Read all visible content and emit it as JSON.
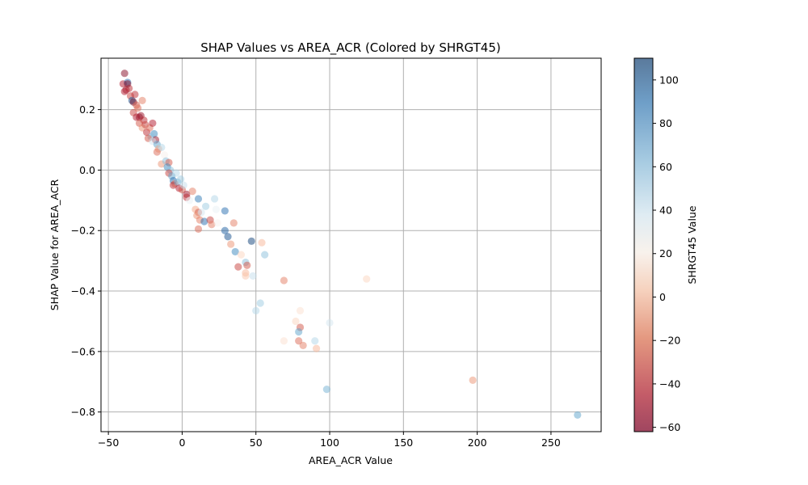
{
  "chart_data": {
    "type": "scatter",
    "title": "SHAP Values vs AREA_ACR (Colored by SHRGT45)",
    "xlabel": "AREA_ACR Value",
    "ylabel": "SHAP Value for AREA_ACR",
    "xlim": [
      -55,
      284
    ],
    "ylim": [
      -0.865,
      0.37
    ],
    "xticks": [
      -50,
      0,
      50,
      100,
      150,
      200,
      250
    ],
    "yticks": [
      -0.8,
      -0.6,
      -0.4,
      -0.2,
      0.0,
      0.2
    ],
    "xtick_labels": [
      "−50",
      "0",
      "50",
      "100",
      "150",
      "200",
      "250"
    ],
    "ytick_labels": [
      "−0.8",
      "−0.6",
      "−0.4",
      "−0.2",
      "0.0",
      "0.2"
    ],
    "grid": true,
    "colorbar": {
      "label": "SHRGT45 Value",
      "range": [
        -62,
        110
      ],
      "ticks": [
        -60,
        -40,
        -20,
        0,
        20,
        40,
        60,
        80,
        100
      ],
      "tick_labels": [
        "−60",
        "−40",
        "−20",
        "0",
        "20",
        "40",
        "60",
        "80",
        "100"
      ],
      "colormap": "RdBu"
    },
    "points": [
      {
        "x": -39,
        "y": 0.32,
        "c": -55
      },
      {
        "x": -40,
        "y": 0.285,
        "c": -45
      },
      {
        "x": -37,
        "y": 0.29,
        "c": 90
      },
      {
        "x": -38,
        "y": 0.265,
        "c": -50
      },
      {
        "x": -36,
        "y": 0.27,
        "c": -40
      },
      {
        "x": -37,
        "y": 0.285,
        "c": -55
      },
      {
        "x": -39,
        "y": 0.26,
        "c": -45
      },
      {
        "x": -35,
        "y": 0.245,
        "c": -35
      },
      {
        "x": -34,
        "y": 0.23,
        "c": 100
      },
      {
        "x": -33,
        "y": 0.225,
        "c": -60
      },
      {
        "x": -32,
        "y": 0.25,
        "c": -40
      },
      {
        "x": -31,
        "y": 0.215,
        "c": -30
      },
      {
        "x": -33,
        "y": 0.19,
        "c": -35
      },
      {
        "x": -30,
        "y": 0.205,
        "c": -25
      },
      {
        "x": -29,
        "y": 0.175,
        "c": -55
      },
      {
        "x": -31,
        "y": 0.175,
        "c": -45
      },
      {
        "x": -27,
        "y": 0.23,
        "c": -20
      },
      {
        "x": -28,
        "y": 0.18,
        "c": -50
      },
      {
        "x": -26,
        "y": 0.165,
        "c": -40
      },
      {
        "x": -29,
        "y": 0.155,
        "c": -30
      },
      {
        "x": -27,
        "y": 0.14,
        "c": -15
      },
      {
        "x": -25,
        "y": 0.15,
        "c": -35
      },
      {
        "x": -24,
        "y": 0.125,
        "c": -40
      },
      {
        "x": -22,
        "y": 0.14,
        "c": -25
      },
      {
        "x": -20,
        "y": 0.155,
        "c": -45
      },
      {
        "x": -19,
        "y": 0.12,
        "c": 80
      },
      {
        "x": -21,
        "y": 0.11,
        "c": 60
      },
      {
        "x": -23,
        "y": 0.105,
        "c": -30
      },
      {
        "x": -18,
        "y": 0.1,
        "c": -50
      },
      {
        "x": -20,
        "y": 0.095,
        "c": 40
      },
      {
        "x": -17,
        "y": 0.085,
        "c": 70
      },
      {
        "x": -16,
        "y": 0.07,
        "c": -10
      },
      {
        "x": -17,
        "y": 0.06,
        "c": -25
      },
      {
        "x": -14,
        "y": 0.075,
        "c": 50
      },
      {
        "x": -12,
        "y": 0.05,
        "c": 20
      },
      {
        "x": -14,
        "y": 0.02,
        "c": -15
      },
      {
        "x": -11,
        "y": 0.03,
        "c": 60
      },
      {
        "x": -9,
        "y": 0.025,
        "c": -30
      },
      {
        "x": -10,
        "y": 0.01,
        "c": 80
      },
      {
        "x": -8,
        "y": 0.0,
        "c": 60
      },
      {
        "x": -9,
        "y": -0.01,
        "c": -35
      },
      {
        "x": -7,
        "y": -0.02,
        "c": 70
      },
      {
        "x": -6,
        "y": -0.035,
        "c": 90
      },
      {
        "x": -5,
        "y": -0.045,
        "c": -20
      },
      {
        "x": -6,
        "y": -0.05,
        "c": -40
      },
      {
        "x": -4,
        "y": -0.01,
        "c": 50
      },
      {
        "x": -3,
        "y": -0.04,
        "c": 65
      },
      {
        "x": -2,
        "y": -0.06,
        "c": -45
      },
      {
        "x": -1,
        "y": -0.03,
        "c": 55
      },
      {
        "x": 0,
        "y": -0.065,
        "c": -30
      },
      {
        "x": 1,
        "y": -0.05,
        "c": 45
      },
      {
        "x": 3,
        "y": -0.08,
        "c": -50
      },
      {
        "x": 3,
        "y": -0.09,
        "c": -40
      },
      {
        "x": 5,
        "y": -0.1,
        "c": 30
      },
      {
        "x": 7,
        "y": -0.07,
        "c": -20
      },
      {
        "x": 9,
        "y": -0.13,
        "c": -10
      },
      {
        "x": 11,
        "y": -0.095,
        "c": 85
      },
      {
        "x": 11,
        "y": -0.14,
        "c": -30
      },
      {
        "x": 10,
        "y": -0.15,
        "c": -15
      },
      {
        "x": 12,
        "y": -0.165,
        "c": -20
      },
      {
        "x": 11,
        "y": -0.195,
        "c": -25
      },
      {
        "x": 13,
        "y": -0.14,
        "c": 40
      },
      {
        "x": 15,
        "y": -0.17,
        "c": 90
      },
      {
        "x": 16,
        "y": -0.12,
        "c": 55
      },
      {
        "x": 19,
        "y": -0.165,
        "c": -35
      },
      {
        "x": 20,
        "y": -0.18,
        "c": -20
      },
      {
        "x": 22,
        "y": -0.095,
        "c": 50
      },
      {
        "x": 23,
        "y": -0.13,
        "c": 30
      },
      {
        "x": 24,
        "y": -0.175,
        "c": 20
      },
      {
        "x": 29,
        "y": -0.135,
        "c": 90
      },
      {
        "x": 29,
        "y": -0.2,
        "c": 95
      },
      {
        "x": 31,
        "y": -0.22,
        "c": 100
      },
      {
        "x": 33,
        "y": -0.245,
        "c": -15
      },
      {
        "x": 35,
        "y": -0.175,
        "c": -20
      },
      {
        "x": 36,
        "y": -0.27,
        "c": 80
      },
      {
        "x": 38,
        "y": -0.32,
        "c": -35
      },
      {
        "x": 40,
        "y": -0.28,
        "c": 5
      },
      {
        "x": 43,
        "y": -0.305,
        "c": 60
      },
      {
        "x": 44,
        "y": -0.315,
        "c": -30
      },
      {
        "x": 43,
        "y": -0.34,
        "c": -5
      },
      {
        "x": 43,
        "y": -0.35,
        "c": 0
      },
      {
        "x": 47,
        "y": -0.235,
        "c": 105
      },
      {
        "x": 48,
        "y": -0.35,
        "c": 45
      },
      {
        "x": 50,
        "y": -0.465,
        "c": 50
      },
      {
        "x": 53,
        "y": -0.44,
        "c": 55
      },
      {
        "x": 54,
        "y": -0.24,
        "c": -5
      },
      {
        "x": 56,
        "y": -0.28,
        "c": 60
      },
      {
        "x": 69,
        "y": -0.365,
        "c": -20
      },
      {
        "x": 69,
        "y": -0.565,
        "c": 10
      },
      {
        "x": 77,
        "y": -0.5,
        "c": 5
      },
      {
        "x": 79,
        "y": -0.565,
        "c": -25
      },
      {
        "x": 80,
        "y": -0.52,
        "c": -30
      },
      {
        "x": 79,
        "y": -0.535,
        "c": 70
      },
      {
        "x": 80,
        "y": -0.465,
        "c": 10
      },
      {
        "x": 82,
        "y": -0.58,
        "c": -20
      },
      {
        "x": 90,
        "y": -0.565,
        "c": 50
      },
      {
        "x": 91,
        "y": -0.59,
        "c": -5
      },
      {
        "x": 98,
        "y": -0.725,
        "c": 65
      },
      {
        "x": 100,
        "y": -0.505,
        "c": 40
      },
      {
        "x": 125,
        "y": -0.36,
        "c": 5
      },
      {
        "x": 197,
        "y": -0.695,
        "c": -15
      },
      {
        "x": 268,
        "y": -0.81,
        "c": 70
      }
    ]
  }
}
